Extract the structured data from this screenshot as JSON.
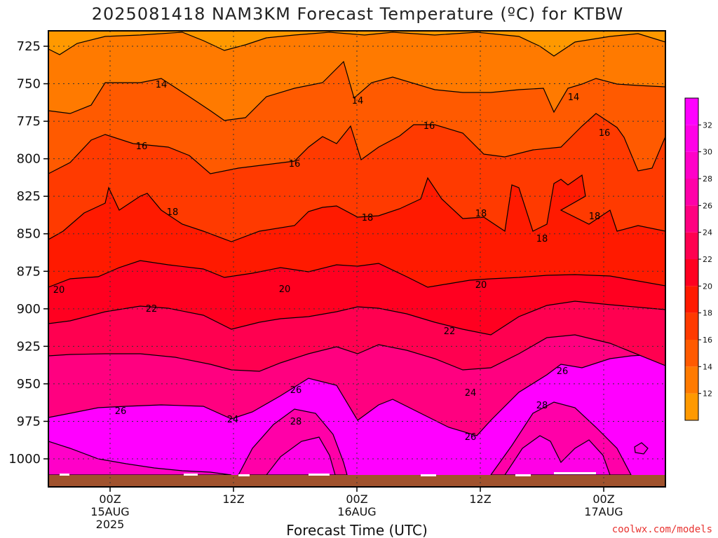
{
  "chart_data": {
    "type": "heatmap",
    "title": "2025081418 NAM3KM Forecast Temperature (ºC) for KTBW",
    "xlabel": "Forecast Time (UTC)",
    "ylabel": "",
    "y_axis": {
      "unit": "hPa",
      "inverted": true,
      "range": [
        1015,
        712
      ],
      "ticks": [
        "725",
        "750",
        "775",
        "800",
        "825",
        "850",
        "875",
        "900",
        "925",
        "950",
        "975",
        "1000"
      ]
    },
    "x_axis": {
      "ticks": [
        {
          "lines": [
            "00Z",
            "15AUG",
            "2025"
          ]
        },
        {
          "lines": [
            "12Z"
          ]
        },
        {
          "lines": [
            "00Z",
            "16AUG"
          ]
        },
        {
          "lines": [
            "12Z"
          ]
        },
        {
          "lines": [
            "00Z",
            "17AUG"
          ]
        }
      ]
    },
    "colorbar": {
      "levels": [
        10,
        12,
        14,
        16,
        18,
        20,
        22,
        24,
        26,
        28,
        30,
        32,
        34
      ],
      "tick_labels": [
        "12",
        "14",
        "16",
        "18",
        "20",
        "22",
        "24",
        "26",
        "28",
        "30",
        "32"
      ],
      "colors": [
        "#ff9900",
        "#ff7a00",
        "#ff5a00",
        "#ff3a00",
        "#ff1a00",
        "#ff0020",
        "#ff0050",
        "#ff0080",
        "#ff00a8",
        "#ff00c8",
        "#ff00e6",
        "#ff00ff"
      ]
    },
    "grid": true,
    "contour_labels": [
      "14",
      "14",
      "14",
      "16",
      "16",
      "16",
      "16",
      "18",
      "18",
      "18",
      "18",
      "18",
      "20",
      "20",
      "20",
      "22",
      "22",
      "24",
      "24",
      "26",
      "26",
      "26",
      "26",
      "28",
      "28"
    ],
    "ground_color": "#a0522d"
  },
  "footer": {
    "credit": "coolwx.com/models"
  }
}
